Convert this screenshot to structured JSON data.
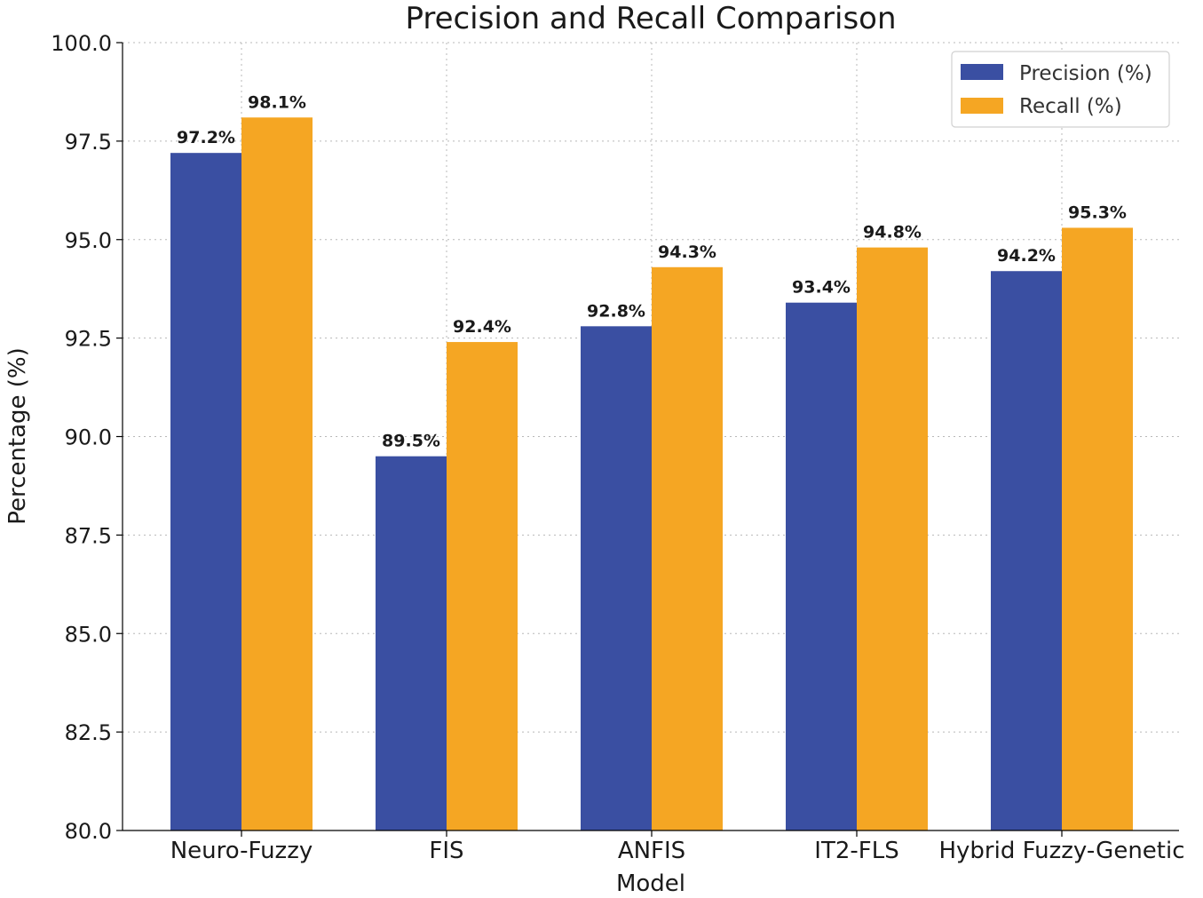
{
  "chart_data": {
    "type": "bar",
    "title": "Precision and Recall Comparison",
    "xlabel": "Model",
    "ylabel": "Percentage (%)",
    "categories": [
      "Neuro-Fuzzy",
      "FIS",
      "ANFIS",
      "IT2-FLS",
      "Hybrid Fuzzy-Genetic"
    ],
    "series": [
      {
        "name": "Precision (%)",
        "color": "#3a4fa2",
        "values": [
          97.2,
          89.5,
          92.8,
          93.4,
          94.2
        ],
        "labels": [
          "97.2%",
          "89.5%",
          "92.8%",
          "93.4%",
          "94.2%"
        ]
      },
      {
        "name": "Recall (%)",
        "color": "#f5a623",
        "values": [
          98.1,
          92.4,
          94.3,
          94.8,
          95.3
        ],
        "labels": [
          "98.1%",
          "92.4%",
          "94.3%",
          "94.8%",
          "95.3%"
        ]
      }
    ],
    "ylim": [
      80.0,
      100.0
    ],
    "yticks": [
      "80.0",
      "82.5",
      "85.0",
      "87.5",
      "90.0",
      "92.5",
      "95.0",
      "97.5",
      "100.0"
    ],
    "ytick_values": [
      80.0,
      82.5,
      85.0,
      87.5,
      90.0,
      92.5,
      95.0,
      97.5,
      100.0
    ],
    "grid": true,
    "legend_position": "top-right"
  }
}
